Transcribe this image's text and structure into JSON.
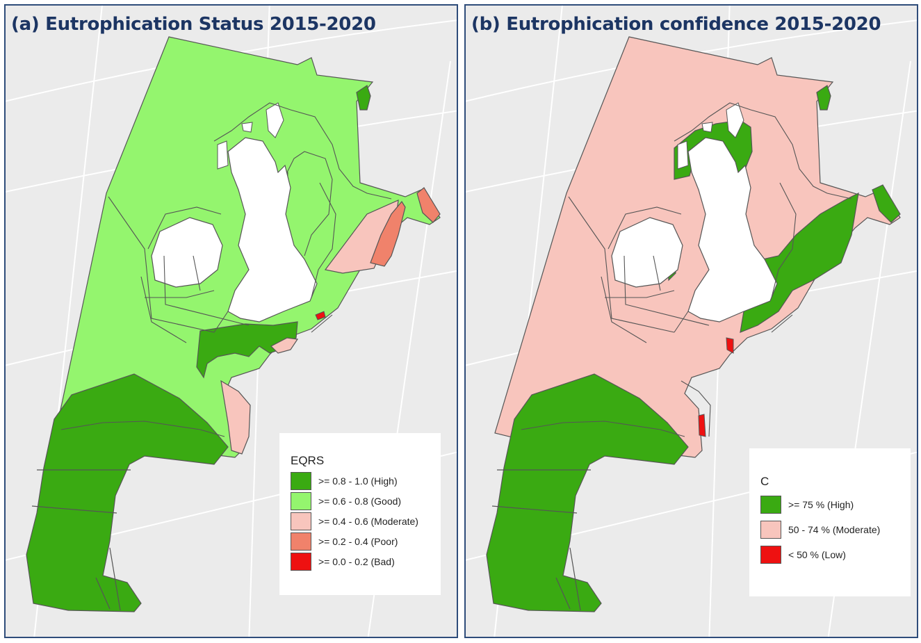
{
  "colors": {
    "high": "#3aaa12",
    "good": "#94f56e",
    "moderate": "#f8c5bd",
    "poor": "#f0826b",
    "bad": "#ee1111",
    "land": "#ffffff",
    "sea": "#ebebeb",
    "outline": "#555555",
    "graticule": "#ffffff",
    "title": "#1c3563",
    "frame": "#2e4c7a"
  },
  "panels": [
    {
      "title": "(a) Eutrophication Status 2015-2020",
      "legend": {
        "title": "EQRS",
        "items": [
          {
            "label": ">= 0.8 - 1.0 (High)",
            "color": "#3aaa12"
          },
          {
            "label": ">= 0.6 - 0.8 (Good)",
            "color": "#94f56e"
          },
          {
            "label": ">= 0.4 - 0.6 (Moderate)",
            "color": "#f8c5bd"
          },
          {
            "label": ">= 0.2 - 0.4 (Poor)",
            "color": "#f0826b"
          },
          {
            "label": ">= 0.0 - 0.2 (Bad)",
            "color": "#ee1111"
          }
        ]
      }
    },
    {
      "title": "(b) Eutrophication confidence 2015-2020",
      "legend": {
        "title": "C",
        "items": [
          {
            "label": ">= 75 % (High)",
            "color": "#3aaa12"
          },
          {
            "label": "50 - 74 % (Moderate)",
            "color": "#f8c5bd"
          },
          {
            "label": "< 50 % (Low)",
            "color": "#ee1111"
          }
        ]
      }
    }
  ]
}
